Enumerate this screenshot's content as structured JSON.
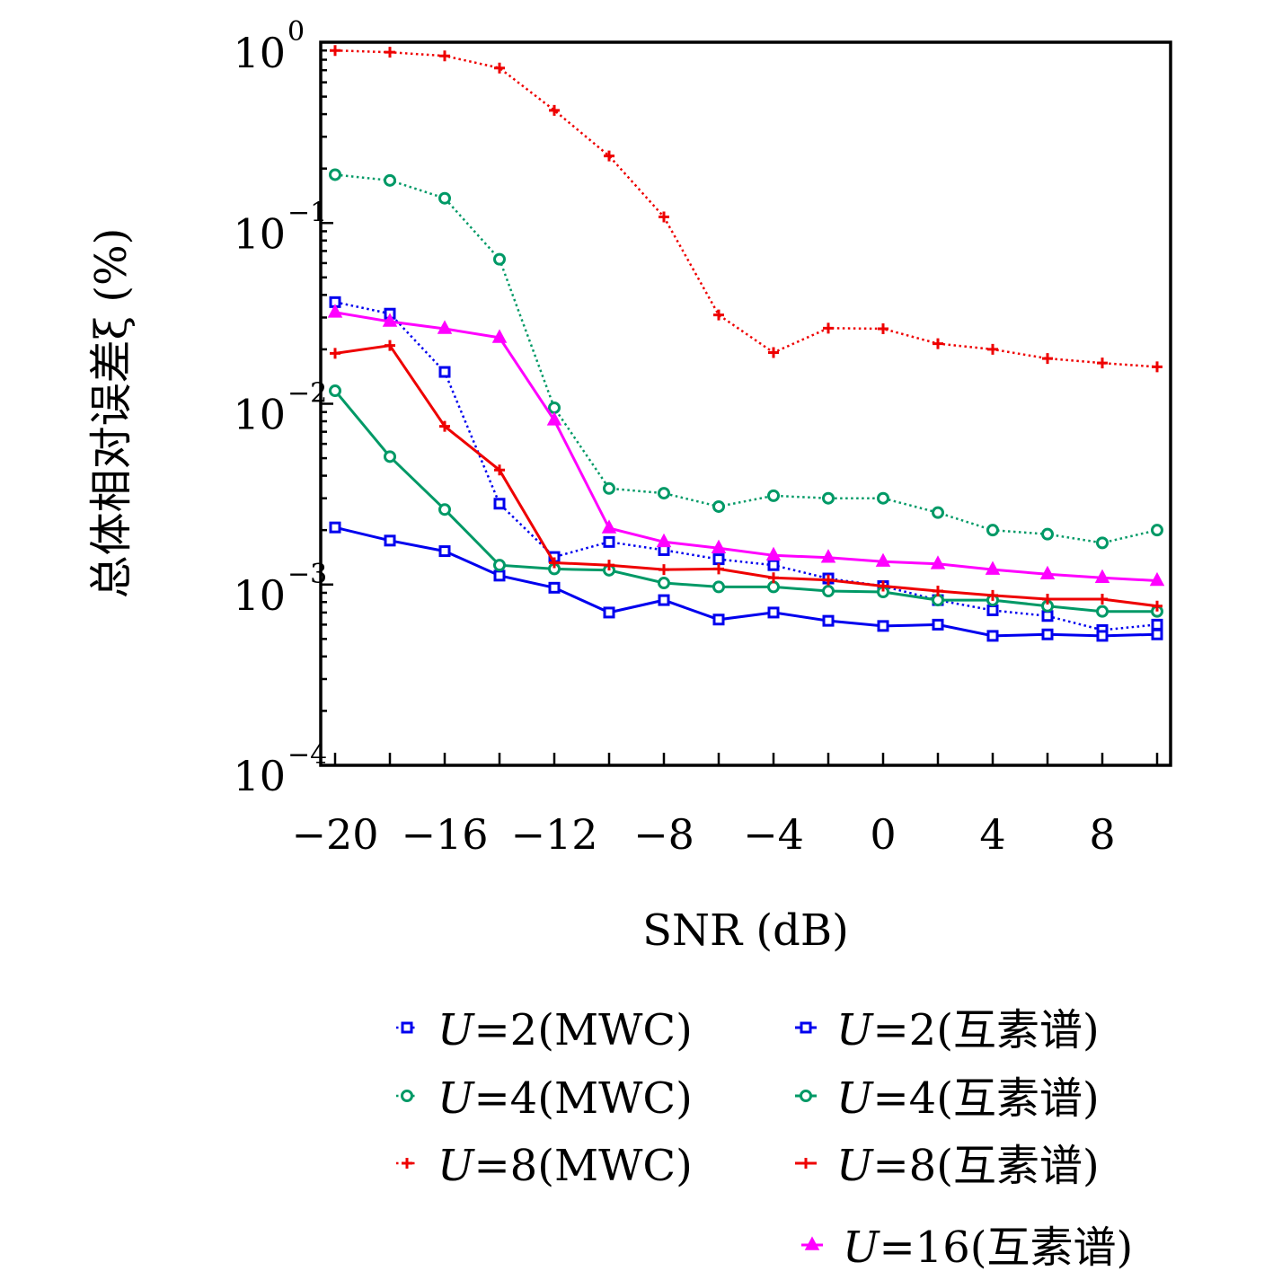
{
  "chart_data": {
    "type": "line",
    "xlabel": "SNR (dB)",
    "ylabel": "总体相对误差ξ (%)",
    "yscale": "log",
    "xlim": [
      -20.5,
      10.5
    ],
    "ylim": [
      0.0001,
      1
    ],
    "xticks": [
      -20,
      -16,
      -12,
      -8,
      -4,
      0,
      4,
      8
    ],
    "xtick_labels": [
      "−20",
      "−16",
      "−12",
      "−8",
      "−4",
      "0",
      "4",
      "8"
    ],
    "ytick_labels": [
      {
        "value": 1,
        "base": "10",
        "exp": "0"
      },
      {
        "value": 0.1,
        "base": "10",
        "exp": "−1"
      },
      {
        "value": 0.01,
        "base": "10",
        "exp": "−2"
      },
      {
        "value": 0.001,
        "base": "10",
        "exp": "−3"
      },
      {
        "value": 0.0001,
        "base": "10",
        "exp": "−4"
      }
    ],
    "grid": false,
    "legend_position": "bottom",
    "x": [
      -20,
      -18,
      -16,
      -14,
      -12,
      -10,
      -8,
      -6,
      -4,
      -2,
      0,
      2,
      4,
      6,
      8,
      10
    ],
    "series": [
      {
        "name": "U=2(MWC)",
        "color": "#0000ee",
        "marker": "square",
        "style": "dotted",
        "values": [
          0.0365,
          0.0315,
          0.015,
          0.0028,
          0.00142,
          0.00172,
          0.00155,
          0.00138,
          0.00128,
          0.00108,
          0.00098,
          0.00082,
          0.00072,
          0.00067,
          0.00056,
          0.0006
        ]
      },
      {
        "name": "U=2(互素谱)",
        "color": "#0000ee",
        "marker": "square",
        "style": "solid",
        "values": [
          0.00207,
          0.00175,
          0.00153,
          0.00112,
          0.00096,
          0.0007,
          0.00082,
          0.00064,
          0.0007,
          0.00063,
          0.00059,
          0.0006,
          0.00052,
          0.00053,
          0.00052,
          0.00053
        ]
      },
      {
        "name": "U=4(MWC)",
        "color": "#009966",
        "marker": "circle",
        "style": "dotted",
        "values": [
          0.185,
          0.172,
          0.137,
          0.063,
          0.0095,
          0.0034,
          0.0032,
          0.0027,
          0.0031,
          0.003,
          0.003,
          0.0025,
          0.002,
          0.0019,
          0.0017,
          0.002
        ]
      },
      {
        "name": "U=4(互素谱)",
        "color": "#009966",
        "marker": "circle",
        "style": "solid",
        "values": [
          0.0118,
          0.0051,
          0.0026,
          0.00128,
          0.00122,
          0.0012,
          0.00102,
          0.00097,
          0.00097,
          0.00092,
          0.00091,
          0.00082,
          0.00082,
          0.00076,
          0.00071,
          0.00071
        ]
      },
      {
        "name": "U=8(MWC)",
        "color": "#ee0000",
        "marker": "plus",
        "style": "dotted",
        "values": [
          0.9,
          0.88,
          0.84,
          0.72,
          0.42,
          0.235,
          0.108,
          0.031,
          0.0192,
          0.0262,
          0.026,
          0.0215,
          0.02,
          0.0178,
          0.0168,
          0.016
        ]
      },
      {
        "name": "U=8(互素谱)",
        "color": "#ee0000",
        "marker": "plus",
        "style": "solid",
        "values": [
          0.019,
          0.021,
          0.0075,
          0.0043,
          0.00132,
          0.00128,
          0.00121,
          0.00122,
          0.00109,
          0.00106,
          0.00098,
          0.00092,
          0.00087,
          0.00083,
          0.00083,
          0.00076
        ]
      },
      {
        "name": "U=16(互素谱)",
        "color": "#ff00ff",
        "marker": "triangle",
        "style": "solid",
        "values": [
          0.032,
          0.0285,
          0.026,
          0.0232,
          0.0081,
          0.00205,
          0.00172,
          0.00159,
          0.00145,
          0.00141,
          0.00134,
          0.0013,
          0.00121,
          0.00114,
          0.00109,
          0.00105
        ]
      }
    ],
    "legend": [
      {
        "series": "U=2(MWC)",
        "var": "U",
        "text": "=2(MWC)"
      },
      {
        "series": "U=2(互素谱)",
        "var": "U",
        "text": "=2(互素谱)"
      },
      {
        "series": "U=4(MWC)",
        "var": "U",
        "text": "=4(MWC)"
      },
      {
        "series": "U=4(互素谱)",
        "var": "U",
        "text": "=4(互素谱)"
      },
      {
        "series": "U=8(MWC)",
        "var": "U",
        "text": "=8(MWC)"
      },
      {
        "series": "U=8(互素谱)",
        "var": "U",
        "text": "=8(互素谱)"
      },
      {
        "series": "U=16(互素谱)",
        "var": "U",
        "text": "=16(互素谱)"
      }
    ]
  }
}
